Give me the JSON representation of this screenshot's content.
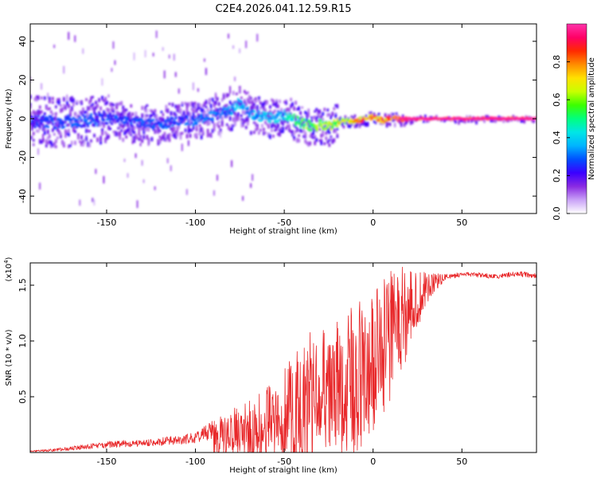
{
  "figure_title": "C2E4.2026.041.12.59.R15",
  "chart_data": [
    {
      "type": "heatmap",
      "title": "C2E4.2026.041.12.59.R15",
      "xlabel": "Height of straight line (km)",
      "ylabel": "Frequency (Hz)",
      "xlim": [
        -193,
        92
      ],
      "ylim": [
        -49,
        49
      ],
      "xticks": [
        -150,
        -100,
        -50,
        0,
        50
      ],
      "xtick_labels": [
        "-150",
        "-100",
        "-50",
        "0",
        "50"
      ],
      "yticks": [
        -40,
        -20,
        0,
        20,
        40
      ],
      "ytick_labels": [
        "-40",
        "-20",
        "0",
        "20",
        "40"
      ],
      "ridge": {
        "x": [
          -193,
          -180,
          -165,
          -150,
          -135,
          -120,
          -110,
          -100,
          -92,
          -85,
          -80,
          -76,
          -72,
          -68,
          -62,
          -55,
          -50,
          -46,
          -42,
          -38,
          -34,
          -30,
          -25,
          -20,
          -15,
          -10,
          -5,
          0,
          5,
          10,
          15,
          20,
          92
        ],
        "frequency": [
          -1,
          -2,
          -1,
          0,
          -2,
          -3,
          -1,
          -1,
          1,
          3,
          4,
          8,
          5,
          2,
          1,
          0,
          2,
          1,
          -2,
          -3,
          -4,
          -3,
          -4,
          -2,
          -1,
          -1,
          0,
          1,
          -1,
          0,
          0,
          0,
          0
        ],
        "amplitude": [
          0.25,
          0.28,
          0.3,
          0.28,
          0.27,
          0.3,
          0.28,
          0.3,
          0.32,
          0.33,
          0.35,
          0.38,
          0.35,
          0.35,
          0.38,
          0.4,
          0.42,
          0.48,
          0.55,
          0.6,
          0.62,
          0.62,
          0.66,
          0.7,
          0.72,
          0.78,
          0.82,
          0.85,
          0.85,
          0.9,
          0.95,
          0.98,
          1.0
        ]
      },
      "colorbar": {
        "label": "Normalized spectral amplitude",
        "range": [
          0,
          1
        ],
        "ticks": [
          0.0,
          0.2,
          0.4,
          0.6,
          0.8
        ],
        "tick_labels": [
          "0.0",
          "0.2",
          "0.4",
          "0.6",
          "0.8"
        ],
        "colors": [
          "#ffffff",
          "#c9a2f7",
          "#8a2be2",
          "#3b00ff",
          "#0050ff",
          "#00b4ff",
          "#00e6e6",
          "#00ff7f",
          "#3cff00",
          "#c8ff00",
          "#ffe100",
          "#ff8c00",
          "#ff2a00",
          "#ff0066",
          "#ff33aa"
        ]
      }
    },
    {
      "type": "line",
      "xlabel": "Height of straight line (km)",
      "ylabel": "SNR (10 * v/v)",
      "multiplier": "(x10",
      "multiplier_exp": "4",
      "multiplier_close": ")",
      "xlim": [
        -193,
        92
      ],
      "ylim": [
        0,
        1.7
      ],
      "xticks": [
        -150,
        -100,
        -50,
        0,
        50
      ],
      "xtick_labels": [
        "-150",
        "-100",
        "-50",
        "0",
        "50"
      ],
      "yticks": [
        0.5,
        1.0,
        1.5
      ],
      "ytick_labels": [
        "0.5",
        "1.0",
        "1.5"
      ],
      "series": [
        {
          "name": "SNR",
          "color": "#e8282a",
          "x": [
            -193,
            -180,
            -170,
            -160,
            -150,
            -140,
            -130,
            -120,
            -110,
            -100,
            -95,
            -90,
            -85,
            -80,
            -75,
            -70,
            -65,
            -60,
            -55,
            -50,
            -45,
            -40,
            -35,
            -30,
            -25,
            -20,
            -15,
            -10,
            -5,
            0,
            5,
            10,
            15,
            20,
            25,
            30,
            35,
            40,
            45,
            50,
            55,
            60,
            65,
            70,
            75,
            80,
            85,
            92
          ],
          "base": [
            0.005,
            0.01,
            0.02,
            0.03,
            0.04,
            0.05,
            0.05,
            0.06,
            0.07,
            0.08,
            0.1,
            0.12,
            0.14,
            0.16,
            0.18,
            0.2,
            0.22,
            0.25,
            0.28,
            0.32,
            0.38,
            0.42,
            0.45,
            0.5,
            0.52,
            0.55,
            0.58,
            0.62,
            0.7,
            0.8,
            0.95,
            1.05,
            1.15,
            1.25,
            1.35,
            1.45,
            1.52,
            1.57,
            1.58,
            1.6,
            1.6,
            1.59,
            1.58,
            1.58,
            1.59,
            1.6,
            1.6,
            1.58
          ],
          "envelope": [
            0.02,
            0.04,
            0.06,
            0.08,
            0.1,
            0.1,
            0.1,
            0.12,
            0.15,
            0.2,
            0.25,
            0.3,
            0.35,
            0.4,
            0.45,
            0.5,
            0.55,
            0.6,
            0.7,
            0.85,
            1.0,
            1.15,
            1.2,
            1.1,
            1.1,
            1.2,
            1.3,
            1.3,
            1.25,
            1.1,
            1.1,
            1.2,
            1.15,
            0.8,
            0.5,
            0.3,
            0.15,
            0.06,
            0.04,
            0.04,
            0.04,
            0.04,
            0.04,
            0.04,
            0.04,
            0.04,
            0.05,
            0.04
          ]
        }
      ]
    }
  ]
}
